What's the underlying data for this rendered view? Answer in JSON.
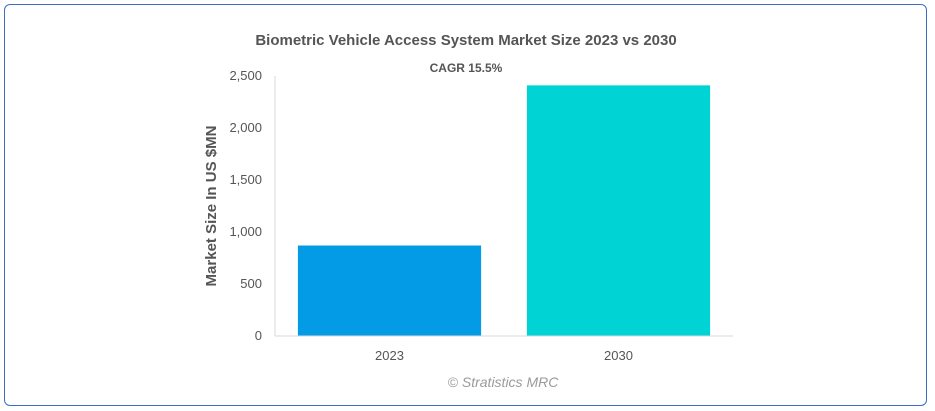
{
  "chart_data": {
    "type": "bar",
    "title": "Biometric Vehicle Access System Market Size 2023 vs 2030",
    "subtitle": "CAGR 15.5%",
    "ylabel": "Market Size In US $MN",
    "xlabel": "",
    "categories": [
      "2023",
      "2030"
    ],
    "values": [
      870,
      2410
    ],
    "colors": [
      "#039be5",
      "#00d3d4"
    ],
    "ylim": [
      0,
      2500
    ],
    "yticks": [
      "0",
      "500",
      "1,000",
      "1,500",
      "2,000",
      "2,500"
    ],
    "grid": false,
    "legend": "none"
  },
  "credit": "© Stratistics MRC",
  "colors": {
    "frame_border": "#3a6fc4",
    "axis": "#d8d8d8",
    "text": "#555555"
  }
}
